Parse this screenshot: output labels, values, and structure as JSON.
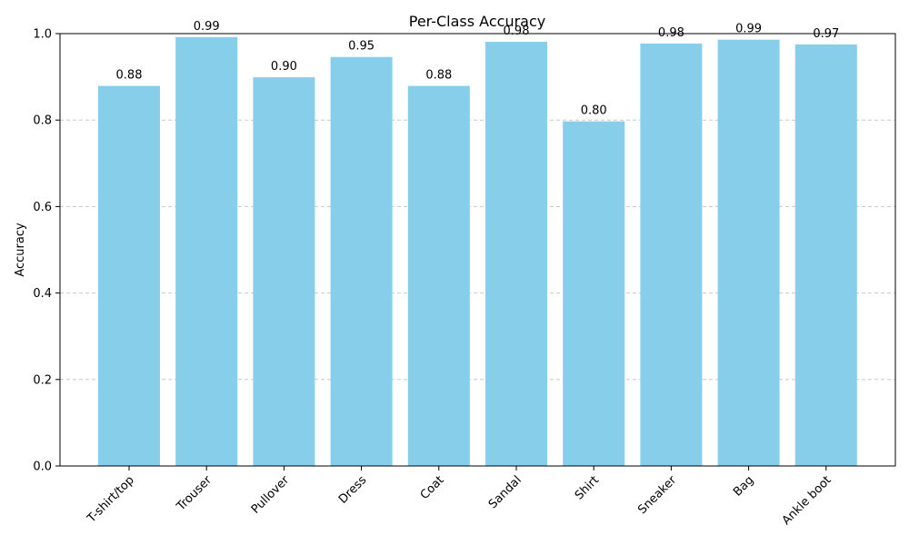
{
  "chart_data": {
    "type": "bar",
    "title": "Per-Class Accuracy",
    "xlabel": "",
    "ylabel": "Accuracy",
    "categories": [
      "T-shirt/top",
      "Trouser",
      "Pullover",
      "Dress",
      "Coat",
      "Sandal",
      "Shirt",
      "Sneaker",
      "Bag",
      "Ankle boot"
    ],
    "values": [
      0.879,
      0.992,
      0.899,
      0.946,
      0.879,
      0.981,
      0.797,
      0.977,
      0.986,
      0.975
    ],
    "value_labels": [
      "0.88",
      "0.99",
      "0.90",
      "0.95",
      "0.88",
      "0.98",
      "0.80",
      "0.98",
      "0.99",
      "0.97"
    ],
    "ylim": [
      0,
      1.0
    ],
    "yticks": [
      0.0,
      0.2,
      0.4,
      0.6,
      0.8,
      1.0
    ],
    "ytick_labels": [
      "0.0",
      "0.2",
      "0.4",
      "0.6",
      "0.8",
      "1.0"
    ],
    "grid": "y-dashed",
    "legend": "none",
    "bar_color": "#87CEEB",
    "grid_color": "#c8c8c8"
  }
}
